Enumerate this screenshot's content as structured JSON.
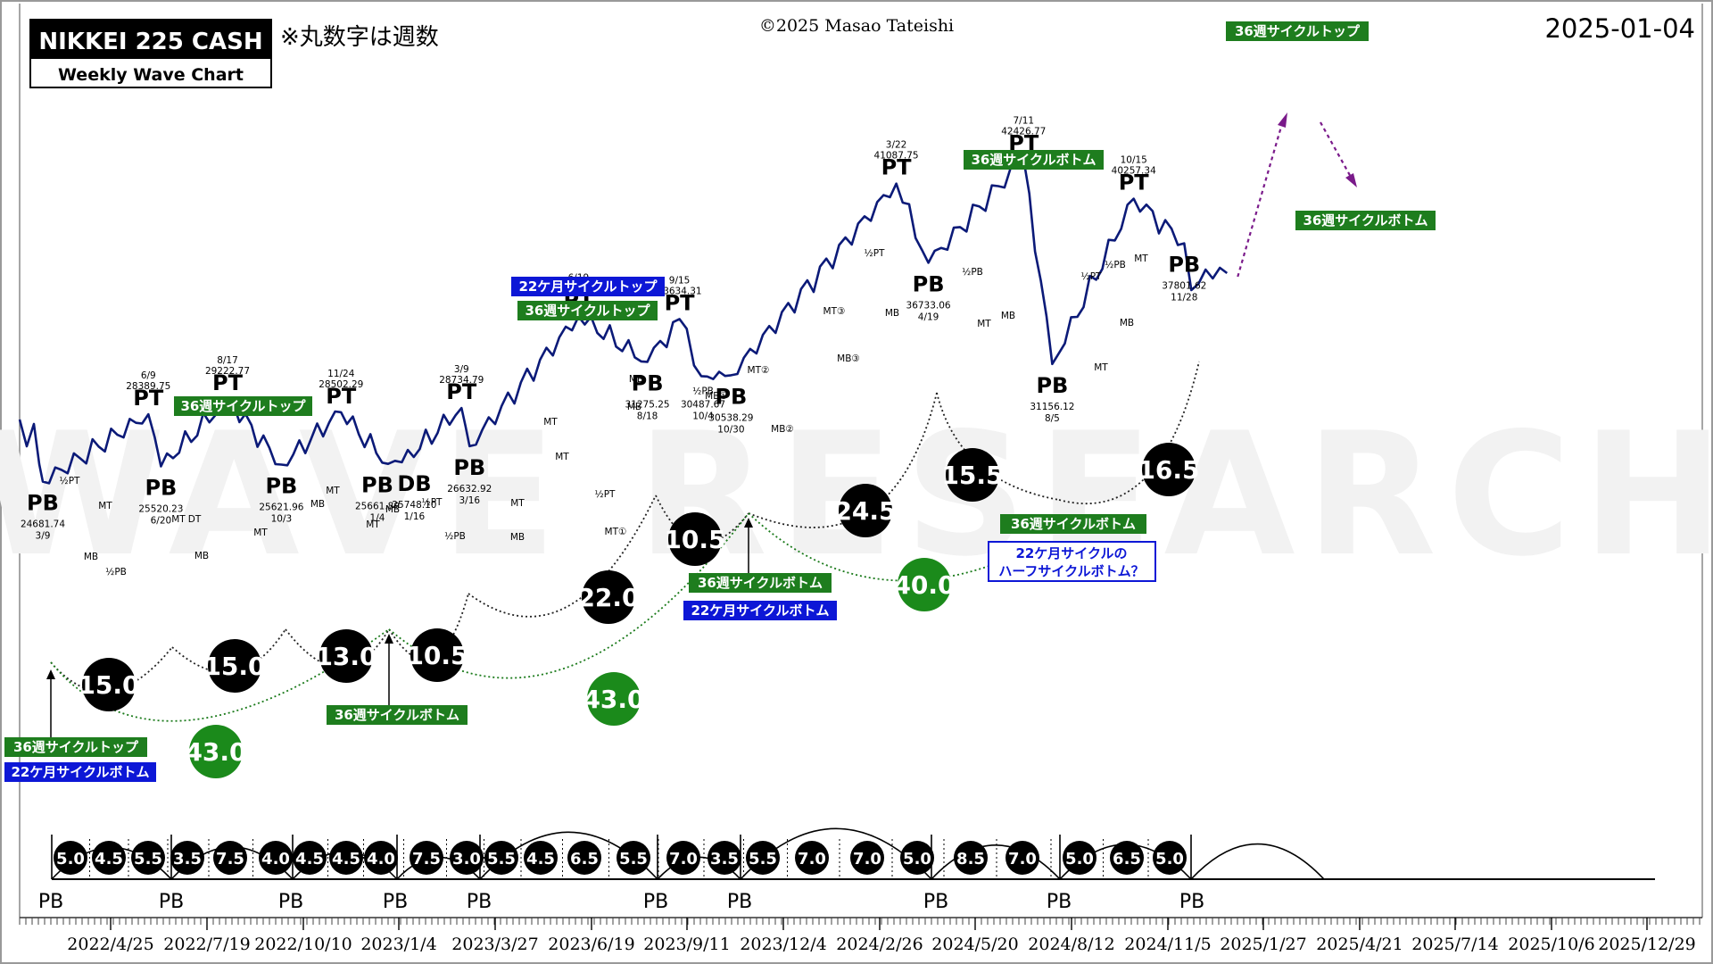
{
  "header": {
    "title": "NIKKEI 225 CASH",
    "subtitle": "Weekly Wave Chart",
    "note": "※丸数字は週数",
    "copyright": "©2025 Masao Tateishi",
    "date": "2025-01-04",
    "watermark": "WAVE RESEARCH"
  },
  "colors": {
    "line": "#0b1a78",
    "green_label": "#1e7d1e",
    "blue_label": "#0d17d6",
    "green_circle": "#1b8a1b",
    "black_circle": "#000000",
    "projection": "#7a1a8a",
    "dotted_green": "#1a7a1a"
  },
  "chart_data": {
    "type": "line",
    "series": [
      {
        "values": [
          {
            "x": "2022-03-09",
            "y": 24681.74
          },
          {
            "x": "2022-06-09",
            "y": 28389.75
          },
          {
            "x": "2022-06-20",
            "y": 25520.23
          },
          {
            "x": "2022-08-17",
            "y": 29222.77
          },
          {
            "x": "2022-10-03",
            "y": 25621.96
          },
          {
            "x": "2022-11-24",
            "y": 28502.29
          },
          {
            "x": "2023-01-04",
            "y": 25661.89
          },
          {
            "x": "2023-01-16",
            "y": 25748.1
          },
          {
            "x": "2023-03-09",
            "y": 28734.79
          },
          {
            "x": "2023-03-16",
            "y": 26632.92
          },
          {
            "x": "2023-06-19",
            "y": 33772.89
          },
          {
            "x": "2023-08-18",
            "y": 31275.25
          },
          {
            "x": "2023-09-15",
            "y": 33634.31
          },
          {
            "x": "2023-10-04",
            "y": 30487.67
          },
          {
            "x": "2023-10-30",
            "y": 30538.29
          },
          {
            "x": "2024-03-22",
            "y": 41087.75
          },
          {
            "x": "2024-04-19",
            "y": 36733.06
          },
          {
            "x": "2024-07-11",
            "y": 42426.77
          },
          {
            "x": "2024-08-05",
            "y": 31156.12
          },
          {
            "x": "2024-10-15",
            "y": 40257.34
          },
          {
            "x": "2024-11-28",
            "y": 37801.62
          }
        ]
      }
    ],
    "x_tick_labels": [
      "2022/4/25",
      "2022/7/19",
      "2022/10/10",
      "2023/1/4",
      "2023/3/27",
      "2023/6/19",
      "2023/9/11",
      "2023/12/4",
      "2024/2/26",
      "2024/5/20",
      "2024/8/12",
      "2024/11/5",
      "2025/1/27",
      "2025/4/21",
      "2025/7/14",
      "2025/10/6",
      "2025/12/29"
    ],
    "pivots": [
      {
        "label": "PB",
        "date": "3/9",
        "price": "24681.74"
      },
      {
        "label": "PT",
        "date": "6/9",
        "price": "28389.75"
      },
      {
        "label": "PB",
        "date": "6/20",
        "price": "25520.23"
      },
      {
        "label": "PT",
        "date": "8/17",
        "price": "29222.77"
      },
      {
        "label": "PB",
        "date": "10/3",
        "price": "25621.96"
      },
      {
        "label": "PT",
        "date": "11/24",
        "price": "28502.29"
      },
      {
        "label": "PB",
        "date": "1/4",
        "price": "25661.89"
      },
      {
        "label": "DB",
        "date": "1/16",
        "price": "25748.10"
      },
      {
        "label": "PT",
        "date": "3/9",
        "price": "28734.79"
      },
      {
        "label": "PB",
        "date": "3/16",
        "price": "26632.92"
      },
      {
        "label": "PT",
        "date": "6/19",
        "price": "33772.89"
      },
      {
        "label": "PB",
        "date": "8/18",
        "price": "31275.25"
      },
      {
        "label": "PT",
        "date": "9/15",
        "price": "33634.31"
      },
      {
        "label": "½PB",
        "date": "10/4",
        "price": "30487.67"
      },
      {
        "label": "PB",
        "date": "10/30",
        "price": "30538.29"
      },
      {
        "label": "PT",
        "date": "3/22",
        "price": "41087.75"
      },
      {
        "label": "PB",
        "date": "4/19",
        "price": "36733.06"
      },
      {
        "label": "PT",
        "date": "7/11",
        "price": "42426.77"
      },
      {
        "label": "PB",
        "date": "8/5",
        "price": "31156.12"
      },
      {
        "label": "PT",
        "date": "10/15",
        "price": "40257.34"
      },
      {
        "label": "PB",
        "date": "11/28",
        "price": "37801.62"
      }
    ],
    "small_marks": [
      "½PT",
      "MT",
      "MB",
      "½PB",
      "MT",
      "DT",
      "MB",
      "MT",
      "MB",
      "MT",
      "MT",
      "MB",
      "½PT",
      "½PB",
      "MT",
      "MB",
      "MT",
      "MB",
      "MT",
      "MB",
      "½PT",
      "MT①",
      "MB①",
      "MT②",
      "MB②",
      "MT③",
      "MB③",
      "½PT",
      "MB",
      "½PB",
      "MT",
      "MB",
      "½PT",
      "MT",
      "½PB",
      "MB",
      "MT"
    ],
    "green_labels": [
      "36週サイクルトップ",
      "36週サイクルトップ",
      "36週サイクルトップ",
      "36週サイクルトップ",
      "36週サイクルボトム",
      "36週サイクルボトム",
      "36週サイクルボトム",
      "36週サイクルボトム",
      "36週サイクルボトム"
    ],
    "blue_labels": [
      "22ケ月サイクルトップ",
      "22ケ月サイクルボトム",
      "22ケ月サイクルボトム"
    ],
    "blue_box_label": [
      "22ケ月サイクルの",
      "ハーフサイクルボトム？"
    ],
    "cycle_circles_black": [
      "15.0",
      "15.0",
      "13.0",
      "10.5",
      "22.0",
      "10.5",
      "24.5",
      "15.5",
      "16.5"
    ],
    "cycle_circles_green": [
      "43.0",
      "43.0",
      "40.0"
    ],
    "bottom_strip_values": [
      "5.0",
      "4.5",
      "5.5",
      "3.5",
      "7.5",
      "4.0",
      "4.5",
      "4.5",
      "4.0",
      "7.5",
      "3.0",
      "5.5",
      "4.5",
      "6.5",
      "5.5",
      "7.0",
      "3.5",
      "5.5",
      "7.0",
      "7.0",
      "5.0",
      "8.5",
      "7.0",
      "5.0",
      "6.5",
      "5.0"
    ],
    "bottom_pb_labels": [
      "PB",
      "PB",
      "PB",
      "PB",
      "PB",
      "PB",
      "PB",
      "PB",
      "PB",
      "PB"
    ]
  }
}
